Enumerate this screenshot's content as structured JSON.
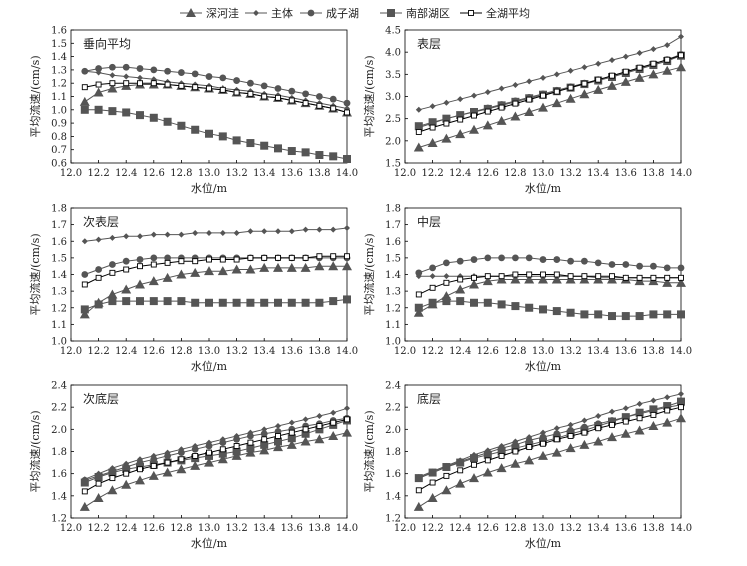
{
  "legend": [
    {
      "name": "深河洼",
      "marker": "triangle",
      "color": "#555555"
    },
    {
      "name": "主体",
      "marker": "diamond",
      "color": "#555555"
    },
    {
      "name": "成子湖",
      "marker": "circle",
      "color": "#555555"
    },
    {
      "name": "南部湖区",
      "marker": "square",
      "color": "#555555"
    },
    {
      "name": "全湖平均",
      "marker": "open-square",
      "color": "#000000"
    }
  ],
  "chart_data": [
    {
      "type": "line",
      "title": "垂向平均",
      "xlabel": "水位/m",
      "ylabel": "平均流速/(cm/s)",
      "xlim": [
        12.0,
        14.0
      ],
      "ylim": [
        0.6,
        1.6
      ],
      "xticks": [
        "12.0",
        "12.2",
        "12.4",
        "12.6",
        "12.8",
        "13.0",
        "13.2",
        "13.4",
        "13.6",
        "13.8",
        "14.0"
      ],
      "yticks": [
        "0.6",
        "0.7",
        "0.8",
        "0.9",
        "1.0",
        "1.1",
        "1.2",
        "1.3",
        "1.4",
        "1.5",
        "1.6"
      ],
      "x": [
        12.1,
        12.2,
        12.3,
        12.4,
        12.5,
        12.6,
        12.7,
        12.8,
        12.9,
        13.0,
        13.1,
        13.2,
        13.3,
        13.4,
        13.5,
        13.6,
        13.7,
        13.8,
        13.9,
        14.0
      ],
      "series": [
        {
          "name": "深河洼",
          "values": [
            1.06,
            1.13,
            1.16,
            1.18,
            1.19,
            1.19,
            1.19,
            1.18,
            1.17,
            1.16,
            1.15,
            1.13,
            1.12,
            1.1,
            1.09,
            1.07,
            1.05,
            1.03,
            1.01,
            0.98
          ]
        },
        {
          "name": "主体",
          "values": [
            1.29,
            1.28,
            1.26,
            1.25,
            1.24,
            1.23,
            1.21,
            1.2,
            1.19,
            1.18,
            1.16,
            1.15,
            1.14,
            1.12,
            1.11,
            1.09,
            1.07,
            1.05,
            1.03,
            1.01
          ]
        },
        {
          "name": "成子湖",
          "values": [
            1.29,
            1.31,
            1.32,
            1.32,
            1.31,
            1.3,
            1.29,
            1.28,
            1.27,
            1.25,
            1.24,
            1.22,
            1.2,
            1.18,
            1.16,
            1.14,
            1.12,
            1.1,
            1.08,
            1.05
          ]
        },
        {
          "name": "南部湖区",
          "values": [
            1.0,
            1.0,
            0.99,
            0.98,
            0.96,
            0.94,
            0.91,
            0.88,
            0.85,
            0.82,
            0.8,
            0.77,
            0.75,
            0.73,
            0.71,
            0.69,
            0.68,
            0.66,
            0.65,
            0.63
          ]
        },
        {
          "name": "全湖平均",
          "values": [
            1.17,
            1.19,
            1.2,
            1.2,
            1.2,
            1.2,
            1.19,
            1.18,
            1.17,
            1.16,
            1.15,
            1.13,
            1.12,
            1.1,
            1.09,
            1.07,
            1.05,
            1.03,
            1.01,
            0.98
          ]
        }
      ]
    },
    {
      "type": "line",
      "title": "表层",
      "xlabel": "水位/m",
      "ylabel": "平均流速/(cm/s)",
      "xlim": [
        12.0,
        14.0
      ],
      "ylim": [
        1.5,
        4.5
      ],
      "xticks": [
        "12.0",
        "12.2",
        "12.4",
        "12.6",
        "12.8",
        "13.0",
        "13.2",
        "13.4",
        "13.6",
        "13.8",
        "14.0"
      ],
      "yticks": [
        "1.5",
        "2.0",
        "2.5",
        "3.0",
        "3.5",
        "4.0",
        "4.5"
      ],
      "x": [
        12.1,
        12.2,
        12.3,
        12.4,
        12.5,
        12.6,
        12.7,
        12.8,
        12.9,
        13.0,
        13.1,
        13.2,
        13.3,
        13.4,
        13.5,
        13.6,
        13.7,
        13.8,
        13.9,
        14.0
      ],
      "series": [
        {
          "name": "深河洼",
          "values": [
            1.85,
            1.95,
            2.05,
            2.15,
            2.25,
            2.35,
            2.45,
            2.55,
            2.65,
            2.75,
            2.85,
            2.95,
            3.05,
            3.15,
            3.24,
            3.33,
            3.42,
            3.5,
            3.58,
            3.66
          ]
        },
        {
          "name": "主体",
          "values": [
            2.7,
            2.78,
            2.86,
            2.94,
            3.02,
            3.1,
            3.18,
            3.26,
            3.34,
            3.42,
            3.5,
            3.58,
            3.66,
            3.74,
            3.82,
            3.9,
            3.98,
            4.07,
            4.16,
            4.35
          ]
        },
        {
          "name": "成子湖",
          "values": [
            2.3,
            2.4,
            2.5,
            2.58,
            2.66,
            2.74,
            2.82,
            2.9,
            2.98,
            3.06,
            3.14,
            3.22,
            3.3,
            3.38,
            3.46,
            3.55,
            3.64,
            3.73,
            3.83,
            3.95
          ]
        },
        {
          "name": "南部湖区",
          "values": [
            2.33,
            2.42,
            2.5,
            2.58,
            2.65,
            2.72,
            2.8,
            2.88,
            2.96,
            3.04,
            3.12,
            3.2,
            3.28,
            3.36,
            3.44,
            3.53,
            3.62,
            3.71,
            3.8,
            3.92
          ]
        },
        {
          "name": "全湖平均",
          "values": [
            2.2,
            2.3,
            2.39,
            2.48,
            2.57,
            2.66,
            2.75,
            2.84,
            2.93,
            3.02,
            3.11,
            3.2,
            3.29,
            3.38,
            3.47,
            3.56,
            3.65,
            3.74,
            3.83,
            3.93
          ]
        }
      ]
    },
    {
      "type": "line",
      "title": "次表层",
      "xlabel": "水位/m",
      "ylabel": "平均流速/(cm/s)",
      "xlim": [
        12.0,
        14.0
      ],
      "ylim": [
        1.0,
        1.8
      ],
      "xticks": [
        "12.0",
        "12.2",
        "12.4",
        "12.6",
        "12.8",
        "13.0",
        "13.2",
        "13.4",
        "13.6",
        "13.8",
        "14.0"
      ],
      "yticks": [
        "1.0",
        "1.1",
        "1.2",
        "1.3",
        "1.4",
        "1.5",
        "1.6",
        "1.7",
        "1.8"
      ],
      "x": [
        12.1,
        12.2,
        12.3,
        12.4,
        12.5,
        12.6,
        12.7,
        12.8,
        12.9,
        13.0,
        13.1,
        13.2,
        13.3,
        13.4,
        13.5,
        13.6,
        13.7,
        13.8,
        13.9,
        14.0
      ],
      "series": [
        {
          "name": "深河洼",
          "values": [
            1.16,
            1.23,
            1.28,
            1.31,
            1.34,
            1.36,
            1.38,
            1.4,
            1.41,
            1.42,
            1.42,
            1.43,
            1.43,
            1.44,
            1.44,
            1.44,
            1.44,
            1.45,
            1.45,
            1.45
          ]
        },
        {
          "name": "主体",
          "values": [
            1.6,
            1.61,
            1.62,
            1.63,
            1.63,
            1.64,
            1.64,
            1.64,
            1.65,
            1.65,
            1.65,
            1.65,
            1.66,
            1.66,
            1.66,
            1.66,
            1.67,
            1.67,
            1.67,
            1.68
          ]
        },
        {
          "name": "成子湖",
          "values": [
            1.4,
            1.43,
            1.46,
            1.48,
            1.49,
            1.5,
            1.5,
            1.5,
            1.5,
            1.5,
            1.5,
            1.5,
            1.5,
            1.5,
            1.5,
            1.5,
            1.5,
            1.5,
            1.5,
            1.5
          ]
        },
        {
          "name": "南部湖区",
          "values": [
            1.19,
            1.22,
            1.24,
            1.24,
            1.24,
            1.24,
            1.24,
            1.24,
            1.23,
            1.23,
            1.23,
            1.23,
            1.23,
            1.23,
            1.23,
            1.23,
            1.23,
            1.23,
            1.24,
            1.25
          ]
        },
        {
          "name": "全湖平均",
          "values": [
            1.34,
            1.38,
            1.41,
            1.43,
            1.45,
            1.46,
            1.47,
            1.48,
            1.48,
            1.49,
            1.49,
            1.49,
            1.5,
            1.5,
            1.5,
            1.5,
            1.5,
            1.51,
            1.51,
            1.51
          ]
        }
      ]
    },
    {
      "type": "line",
      "title": "中层",
      "xlabel": "水位/m",
      "ylabel": "平均流速/(cm/s)",
      "xlim": [
        12.0,
        14.0
      ],
      "ylim": [
        1.0,
        1.8
      ],
      "xticks": [
        "12.0",
        "12.2",
        "12.4",
        "12.6",
        "12.8",
        "13.0",
        "13.2",
        "13.4",
        "13.6",
        "13.8",
        "14.0"
      ],
      "yticks": [
        "1.0",
        "1.1",
        "1.2",
        "1.3",
        "1.4",
        "1.5",
        "1.6",
        "1.7",
        "1.8"
      ],
      "x": [
        12.1,
        12.2,
        12.3,
        12.4,
        12.5,
        12.6,
        12.7,
        12.8,
        12.9,
        13.0,
        13.1,
        13.2,
        13.3,
        13.4,
        13.5,
        13.6,
        13.7,
        13.8,
        13.9,
        14.0
      ],
      "series": [
        {
          "name": "深河洼",
          "values": [
            1.17,
            1.22,
            1.27,
            1.31,
            1.34,
            1.36,
            1.37,
            1.37,
            1.37,
            1.37,
            1.37,
            1.37,
            1.37,
            1.37,
            1.37,
            1.37,
            1.36,
            1.36,
            1.35,
            1.35
          ]
        },
        {
          "name": "主体",
          "values": [
            1.39,
            1.39,
            1.39,
            1.39,
            1.39,
            1.39,
            1.39,
            1.39,
            1.39,
            1.39,
            1.39,
            1.39,
            1.39,
            1.38,
            1.38,
            1.38,
            1.38,
            1.38,
            1.38,
            1.38
          ]
        },
        {
          "name": "成子湖",
          "values": [
            1.41,
            1.44,
            1.47,
            1.48,
            1.49,
            1.5,
            1.5,
            1.5,
            1.5,
            1.49,
            1.49,
            1.48,
            1.48,
            1.47,
            1.46,
            1.46,
            1.45,
            1.45,
            1.44,
            1.44
          ]
        },
        {
          "name": "南部湖区",
          "values": [
            1.2,
            1.23,
            1.24,
            1.24,
            1.23,
            1.23,
            1.22,
            1.21,
            1.2,
            1.19,
            1.18,
            1.17,
            1.16,
            1.16,
            1.15,
            1.15,
            1.15,
            1.16,
            1.16,
            1.16
          ]
        },
        {
          "name": "全湖平均",
          "values": [
            1.28,
            1.32,
            1.35,
            1.37,
            1.38,
            1.39,
            1.39,
            1.4,
            1.4,
            1.4,
            1.4,
            1.39,
            1.39,
            1.39,
            1.39,
            1.38,
            1.38,
            1.38,
            1.38,
            1.38
          ]
        }
      ]
    },
    {
      "type": "line",
      "title": "次底层",
      "xlabel": "水位/m",
      "ylabel": "平均流速/(cm/s)",
      "xlim": [
        12.0,
        14.0
      ],
      "ylim": [
        1.2,
        2.4
      ],
      "xticks": [
        "12.0",
        "12.2",
        "12.4",
        "12.6",
        "12.8",
        "13.0",
        "13.2",
        "13.4",
        "13.6",
        "13.8",
        "14.0"
      ],
      "yticks": [
        "1.2",
        "1.4",
        "1.6",
        "1.8",
        "2.0",
        "2.2",
        "2.4"
      ],
      "x": [
        12.1,
        12.2,
        12.3,
        12.4,
        12.5,
        12.6,
        12.7,
        12.8,
        12.9,
        13.0,
        13.1,
        13.2,
        13.3,
        13.4,
        13.5,
        13.6,
        13.7,
        13.8,
        13.9,
        14.0
      ],
      "series": [
        {
          "name": "深河洼",
          "values": [
            1.3,
            1.38,
            1.45,
            1.5,
            1.54,
            1.58,
            1.61,
            1.64,
            1.67,
            1.7,
            1.73,
            1.76,
            1.79,
            1.81,
            1.84,
            1.86,
            1.89,
            1.91,
            1.94,
            1.97
          ]
        },
        {
          "name": "主体",
          "values": [
            1.55,
            1.6,
            1.65,
            1.69,
            1.73,
            1.76,
            1.79,
            1.82,
            1.85,
            1.88,
            1.91,
            1.94,
            1.97,
            2.0,
            2.03,
            2.06,
            2.09,
            2.12,
            2.15,
            2.19
          ]
        },
        {
          "name": "成子湖",
          "values": [
            1.54,
            1.58,
            1.62,
            1.66,
            1.7,
            1.73,
            1.76,
            1.79,
            1.82,
            1.85,
            1.88,
            1.91,
            1.94,
            1.96,
            1.98,
            2.0,
            2.03,
            2.05,
            2.08,
            2.1
          ]
        },
        {
          "name": "南部湖区",
          "values": [
            1.52,
            1.57,
            1.61,
            1.64,
            1.66,
            1.68,
            1.7,
            1.72,
            1.74,
            1.76,
            1.78,
            1.8,
            1.83,
            1.86,
            1.89,
            1.92,
            1.96,
            2.0,
            2.04,
            2.08
          ]
        },
        {
          "name": "全湖平均",
          "values": [
            1.44,
            1.51,
            1.56,
            1.6,
            1.64,
            1.67,
            1.7,
            1.73,
            1.76,
            1.79,
            1.82,
            1.85,
            1.88,
            1.91,
            1.94,
            1.97,
            2.0,
            2.03,
            2.06,
            2.09
          ]
        }
      ]
    },
    {
      "type": "line",
      "title": "底层",
      "xlabel": "水位/m",
      "ylabel": "平均流速/(cm/s)",
      "xlim": [
        12.0,
        14.0
      ],
      "ylim": [
        1.2,
        2.4
      ],
      "xticks": [
        "12.0",
        "12.2",
        "12.4",
        "12.6",
        "12.8",
        "13.0",
        "13.2",
        "13.4",
        "13.6",
        "13.8",
        "14.0"
      ],
      "yticks": [
        "1.2",
        "1.4",
        "1.6",
        "1.8",
        "2.0",
        "2.2",
        "2.4"
      ],
      "x": [
        12.1,
        12.2,
        12.3,
        12.4,
        12.5,
        12.6,
        12.7,
        12.8,
        12.9,
        13.0,
        13.1,
        13.2,
        13.3,
        13.4,
        13.5,
        13.6,
        13.7,
        13.8,
        13.9,
        14.0
      ],
      "series": [
        {
          "name": "深河洼",
          "values": [
            1.3,
            1.38,
            1.45,
            1.51,
            1.56,
            1.61,
            1.65,
            1.69,
            1.72,
            1.76,
            1.79,
            1.83,
            1.86,
            1.89,
            1.93,
            1.96,
            1.99,
            2.03,
            2.06,
            2.1
          ]
        },
        {
          "name": "主体",
          "values": [
            1.57,
            1.62,
            1.67,
            1.72,
            1.77,
            1.81,
            1.85,
            1.89,
            1.93,
            1.97,
            2.01,
            2.04,
            2.08,
            2.12,
            2.16,
            2.19,
            2.23,
            2.26,
            2.29,
            2.32
          ]
        },
        {
          "name": "成子湖",
          "values": [
            1.56,
            1.61,
            1.66,
            1.71,
            1.75,
            1.79,
            1.83,
            1.86,
            1.9,
            1.93,
            1.96,
            1.99,
            2.02,
            2.05,
            2.08,
            2.11,
            2.14,
            2.17,
            2.2,
            2.22
          ]
        },
        {
          "name": "南部湖区",
          "values": [
            1.56,
            1.61,
            1.66,
            1.7,
            1.74,
            1.77,
            1.8,
            1.83,
            1.86,
            1.89,
            1.92,
            1.96,
            1.99,
            2.03,
            2.07,
            2.11,
            2.15,
            2.18,
            2.21,
            2.25
          ]
        },
        {
          "name": "全湖平均",
          "values": [
            1.45,
            1.52,
            1.58,
            1.63,
            1.68,
            1.72,
            1.76,
            1.8,
            1.84,
            1.87,
            1.91,
            1.94,
            1.97,
            2.01,
            2.04,
            2.07,
            2.1,
            2.13,
            2.17,
            2.2
          ]
        }
      ]
    }
  ]
}
